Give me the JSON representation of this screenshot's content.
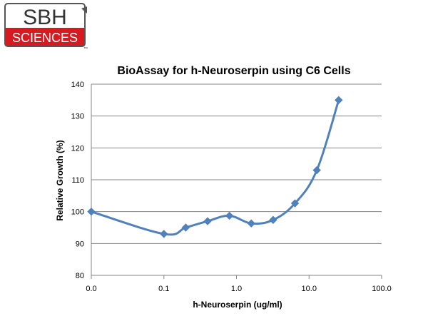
{
  "logo": {
    "top_text": "SBH",
    "bottom_text": "SCIENCES",
    "tm": "™",
    "brand_red": "#d71920",
    "border_color": "#555555"
  },
  "chart_data": {
    "type": "line",
    "title": "BioAssay for h-Neuroserpin using C6 Cells",
    "xlabel": "h-Neuroserpin (ug/ml)",
    "ylabel": "Relative Growth (%)",
    "x_scale": "log",
    "x_tick_labels": [
      "0.0",
      "0.1",
      "1.0",
      "10.0",
      "100.0"
    ],
    "y_ticks": [
      80,
      90,
      100,
      110,
      120,
      130,
      140
    ],
    "ylim": [
      80,
      140
    ],
    "grid": "horizontal",
    "series": [
      {
        "color": "#4f81bd",
        "marker": "diamond",
        "x": [
          0.01,
          0.1,
          0.2,
          0.4,
          0.8,
          1.6,
          3.2,
          6.4,
          12.8,
          25.6
        ],
        "y": [
          100,
          93,
          95,
          97,
          98.7,
          96.3,
          97.4,
          102.6,
          113,
          135
        ]
      }
    ]
  }
}
